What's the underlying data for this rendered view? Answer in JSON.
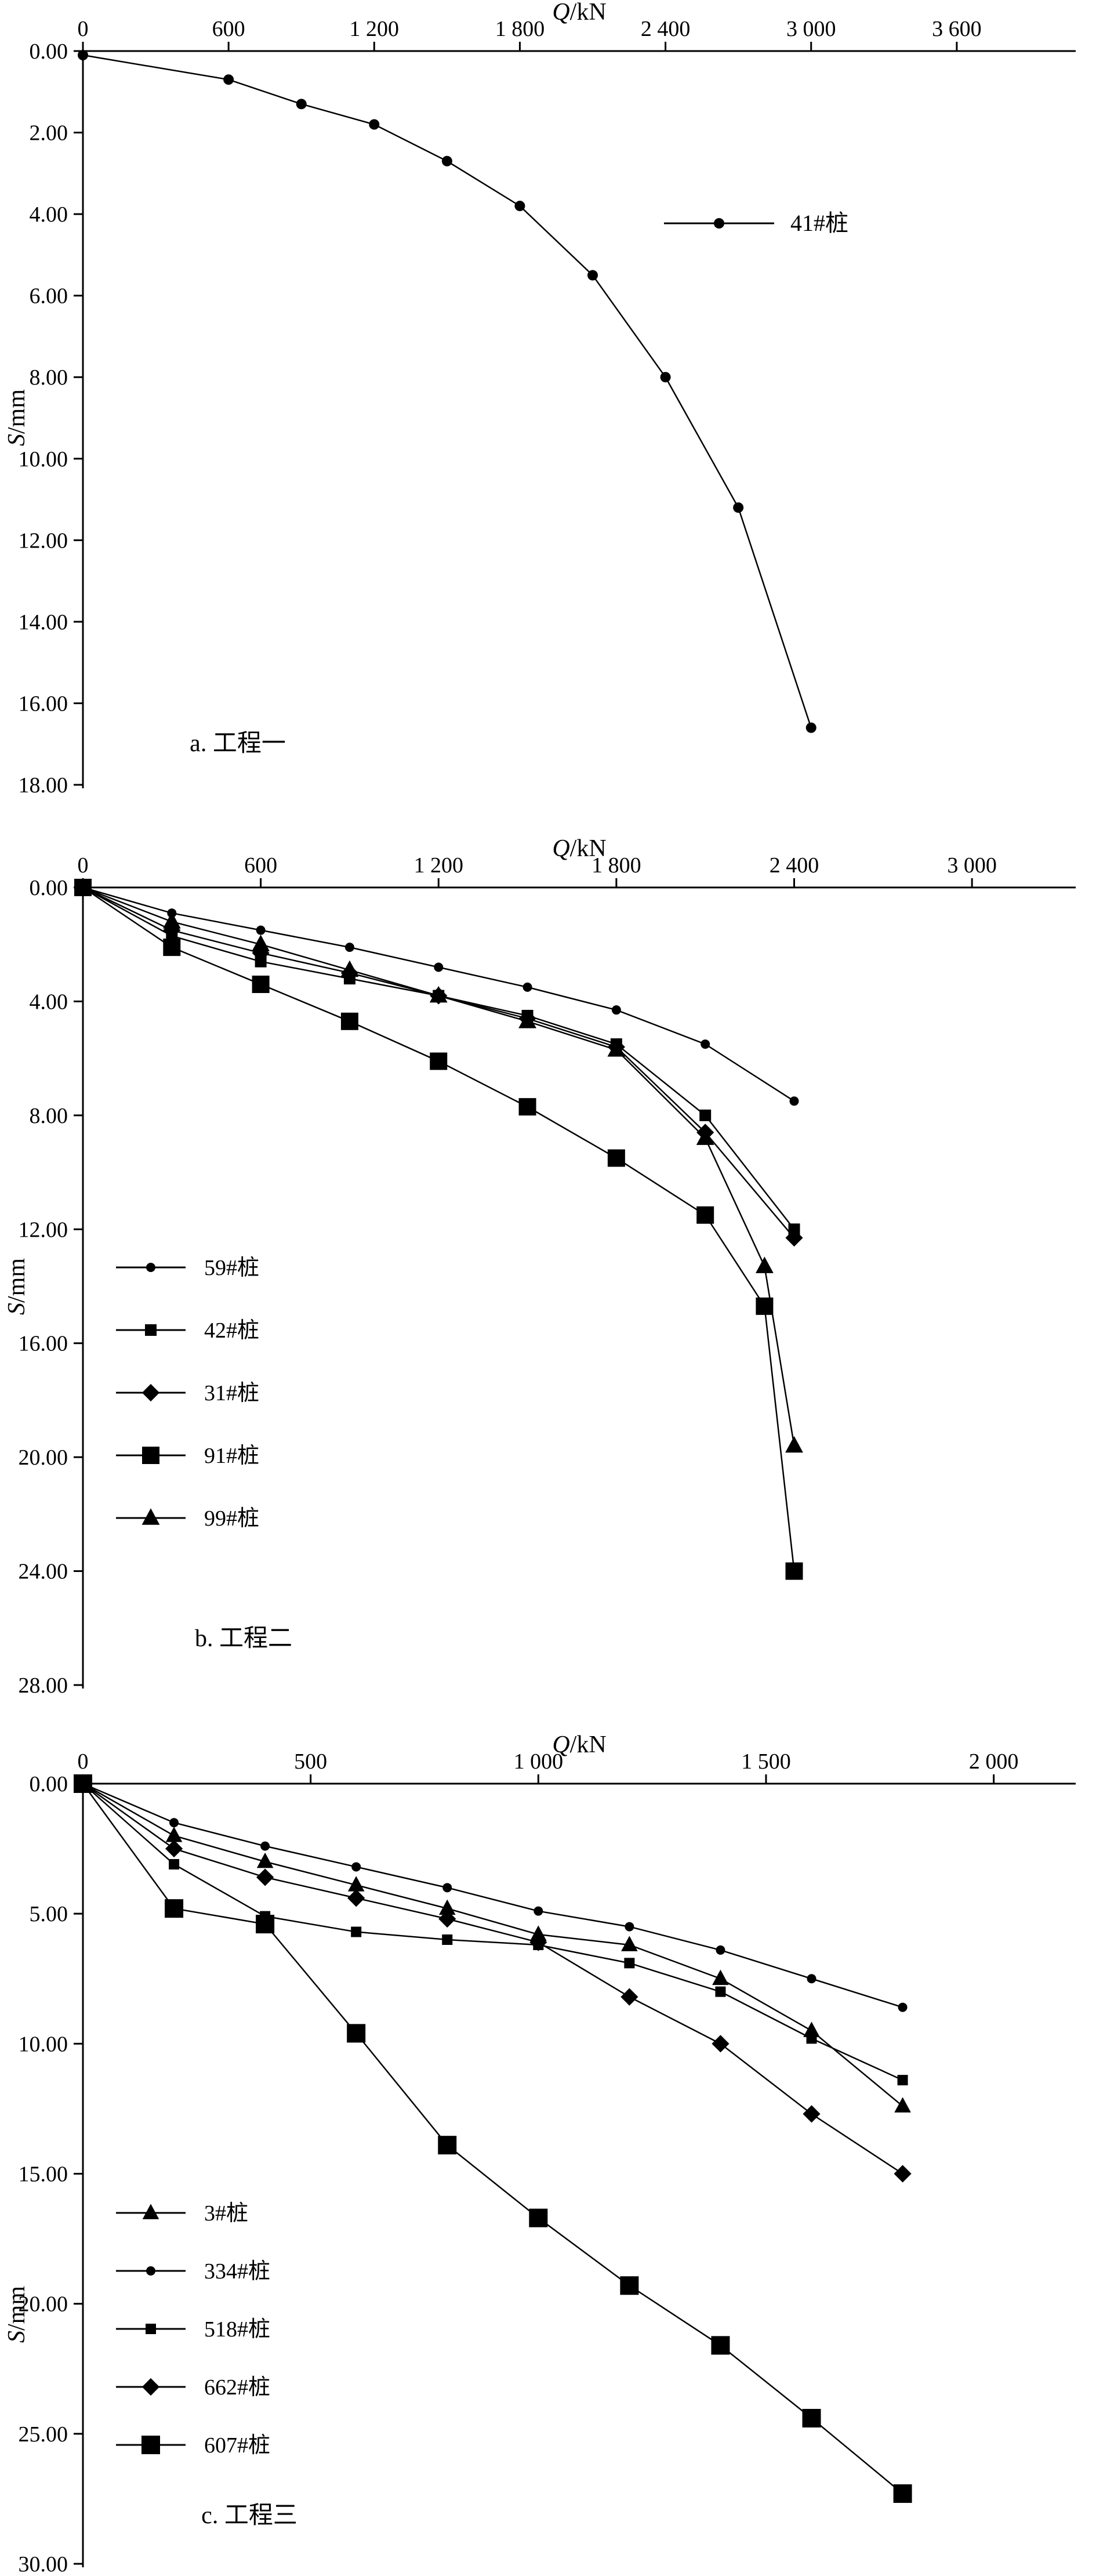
{
  "page": {
    "background": "#ffffff",
    "ink": "#000000"
  },
  "chart_data": [
    {
      "id": "a",
      "type": "line",
      "caption": "a. 工程一",
      "xlabel": {
        "italic": "Q",
        "rest": "/kN"
      },
      "ylabel": {
        "italic": "S",
        "rest": "/mm"
      },
      "xlim": [
        0,
        4090
      ],
      "ylim": [
        0,
        18
      ],
      "xticks": [
        {
          "v": 0,
          "label": "0"
        },
        {
          "v": 600,
          "label": "600"
        },
        {
          "v": 1200,
          "label": "1 200"
        },
        {
          "v": 1800,
          "label": "1 800"
        },
        {
          "v": 2400,
          "label": "2 400"
        },
        {
          "v": 3000,
          "label": "3 000"
        },
        {
          "v": 3600,
          "label": "3 600"
        }
      ],
      "yticks": [
        {
          "v": 0,
          "label": "0.00"
        },
        {
          "v": 2,
          "label": "2.00"
        },
        {
          "v": 4,
          "label": "4.00"
        },
        {
          "v": 6,
          "label": "6.00"
        },
        {
          "v": 8,
          "label": "8.00"
        },
        {
          "v": 10,
          "label": "10.00"
        },
        {
          "v": 12,
          "label": "12.00"
        },
        {
          "v": 14,
          "label": "14.00"
        },
        {
          "v": 16,
          "label": "16.00"
        },
        {
          "v": 18,
          "label": "18.00"
        }
      ],
      "series": [
        {
          "name": "41#桩",
          "marker": "circle",
          "marker_size": 18,
          "x": [
            0,
            600,
            900,
            1200,
            1500,
            1800,
            2100,
            2400,
            2700,
            3000
          ],
          "y": [
            0.1,
            0.7,
            1.3,
            1.8,
            2.7,
            3.8,
            5.5,
            8.0,
            11.2,
            16.6
          ]
        }
      ]
    },
    {
      "id": "b",
      "type": "line",
      "caption": "b. 工程二",
      "xlabel": {
        "italic": "Q",
        "rest": "/kN"
      },
      "ylabel": {
        "italic": "S",
        "rest": "/mm"
      },
      "xlim": [
        0,
        3350
      ],
      "ylim": [
        0,
        28
      ],
      "xticks": [
        {
          "v": 0,
          "label": "0"
        },
        {
          "v": 600,
          "label": "600"
        },
        {
          "v": 1200,
          "label": "1 200"
        },
        {
          "v": 1800,
          "label": "1 800"
        },
        {
          "v": 2400,
          "label": "2 400"
        },
        {
          "v": 3000,
          "label": "3 000"
        }
      ],
      "yticks": [
        {
          "v": 0,
          "label": "0.00"
        },
        {
          "v": 4,
          "label": "4.00"
        },
        {
          "v": 8,
          "label": "8.00"
        },
        {
          "v": 12,
          "label": "12.00"
        },
        {
          "v": 16,
          "label": "16.00"
        },
        {
          "v": 20,
          "label": "20.00"
        },
        {
          "v": 24,
          "label": "24.00"
        },
        {
          "v": 28,
          "label": "28.00"
        }
      ],
      "series": [
        {
          "name": "59#桩",
          "marker": "circle",
          "marker_size": 16,
          "x": [
            0,
            300,
            600,
            900,
            1200,
            1500,
            1800,
            2100,
            2400
          ],
          "y": [
            0,
            0.9,
            1.5,
            2.1,
            2.8,
            3.5,
            4.3,
            5.5,
            7.5
          ]
        },
        {
          "name": "42#桩",
          "marker": "square",
          "marker_size": 20,
          "x": [
            0,
            300,
            600,
            900,
            1200,
            1500,
            1800,
            2100,
            2400
          ],
          "y": [
            0,
            1.7,
            2.6,
            3.2,
            3.8,
            4.5,
            5.5,
            8.0,
            12.0
          ]
        },
        {
          "name": "31#桩",
          "marker": "diamond",
          "marker_size": 26,
          "x": [
            0,
            300,
            600,
            900,
            1200,
            1500,
            1800,
            2100,
            2400
          ],
          "y": [
            0,
            1.5,
            2.3,
            3.0,
            3.8,
            4.6,
            5.6,
            8.6,
            12.3
          ]
        },
        {
          "name": "91#桩",
          "marker": "square",
          "marker_size": 30,
          "x": [
            0,
            300,
            600,
            900,
            1200,
            1500,
            1800,
            2100,
            2300,
            2400
          ],
          "y": [
            0,
            2.1,
            3.4,
            4.7,
            6.1,
            7.7,
            9.5,
            11.5,
            14.7,
            24.0
          ]
        },
        {
          "name": "99#桩",
          "marker": "triangle",
          "marker_size": 28,
          "x": [
            0,
            300,
            600,
            900,
            1200,
            1500,
            1800,
            2100,
            2300,
            2400
          ],
          "y": [
            0,
            1.2,
            2.0,
            2.9,
            3.8,
            4.7,
            5.7,
            8.8,
            13.3,
            19.6
          ]
        }
      ]
    },
    {
      "id": "c",
      "type": "line",
      "caption": "c. 工程三",
      "xlabel": {
        "italic": "Q",
        "rest": "/kN"
      },
      "ylabel": {
        "italic": "S",
        "rest": "/mm"
      },
      "xlim": [
        0,
        2180
      ],
      "ylim": [
        0,
        30
      ],
      "xticks": [
        {
          "v": 0,
          "label": "0"
        },
        {
          "v": 500,
          "label": "500"
        },
        {
          "v": 1000,
          "label": "1 000"
        },
        {
          "v": 1500,
          "label": "1 500"
        },
        {
          "v": 2000,
          "label": "2 000"
        }
      ],
      "yticks": [
        {
          "v": 0,
          "label": "0.00"
        },
        {
          "v": 5,
          "label": "5.00"
        },
        {
          "v": 10,
          "label": "10.00"
        },
        {
          "v": 15,
          "label": "15.00"
        },
        {
          "v": 20,
          "label": "20.00"
        },
        {
          "v": 25,
          "label": "25.00"
        },
        {
          "v": 30,
          "label": "30.00"
        }
      ],
      "series": [
        {
          "name": "3#桩",
          "marker": "triangle",
          "marker_size": 26,
          "x": [
            0,
            200,
            400,
            600,
            800,
            1000,
            1200,
            1400,
            1600,
            1800
          ],
          "y": [
            0,
            2.0,
            3.0,
            3.9,
            4.8,
            5.8,
            6.2,
            7.5,
            9.5,
            12.4
          ]
        },
        {
          "name": "334#桩",
          "marker": "circle",
          "marker_size": 16,
          "x": [
            0,
            200,
            400,
            600,
            800,
            1000,
            1200,
            1400,
            1600,
            1800
          ],
          "y": [
            0,
            1.5,
            2.4,
            3.2,
            4.0,
            4.9,
            5.5,
            6.4,
            7.5,
            8.6
          ]
        },
        {
          "name": "518#桩",
          "marker": "square",
          "marker_size": 18,
          "x": [
            0,
            200,
            400,
            600,
            800,
            1000,
            1200,
            1400,
            1600,
            1800
          ],
          "y": [
            0,
            3.1,
            5.1,
            5.7,
            6.0,
            6.2,
            6.9,
            8.0,
            9.8,
            11.4
          ]
        },
        {
          "name": "662#桩",
          "marker": "diamond",
          "marker_size": 26,
          "x": [
            0,
            200,
            400,
            600,
            800,
            1000,
            1200,
            1400,
            1600,
            1800
          ],
          "y": [
            0,
            2.5,
            3.6,
            4.4,
            5.2,
            6.1,
            8.2,
            10.0,
            12.7,
            15.0
          ]
        },
        {
          "name": "607#桩",
          "marker": "square",
          "marker_size": 32,
          "x": [
            0,
            200,
            400,
            600,
            800,
            1000,
            1200,
            1400,
            1600,
            1800
          ],
          "y": [
            0,
            4.8,
            5.4,
            9.6,
            13.9,
            16.7,
            19.3,
            21.6,
            24.4,
            27.3
          ]
        }
      ]
    }
  ]
}
